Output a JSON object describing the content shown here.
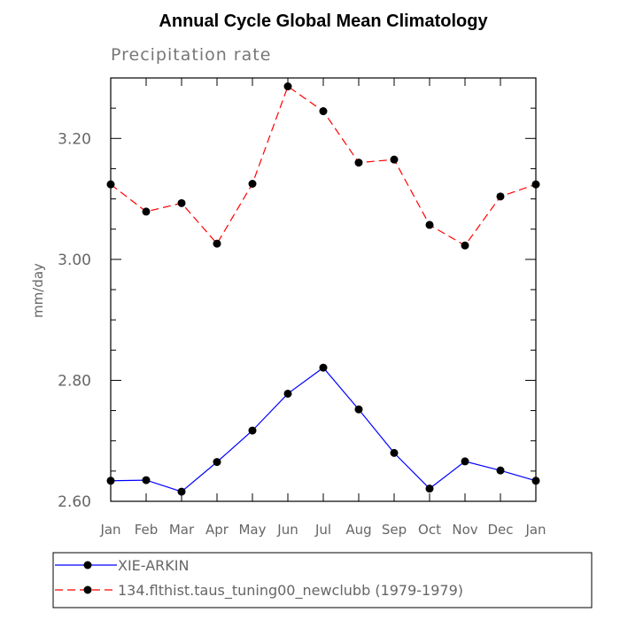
{
  "chart_data": {
    "type": "line",
    "title": "Annual Cycle Global Mean Climatology",
    "subtitle": "Precipitation rate",
    "xlabel": "",
    "ylabel": "mm/day",
    "categories": [
      "Jan",
      "Feb",
      "Mar",
      "Apr",
      "May",
      "Jun",
      "Jul",
      "Aug",
      "Sep",
      "Oct",
      "Nov",
      "Dec",
      "Jan"
    ],
    "ylim": [
      2.6,
      3.3
    ],
    "yticks": [
      2.6,
      2.8,
      3.0,
      3.2
    ],
    "ytick_labels": [
      "2.60",
      "2.80",
      "3.00",
      "3.20"
    ],
    "series": [
      {
        "name": "XIE-ARKIN",
        "color": "#0000ff",
        "dash": "solid",
        "values": [
          2.634,
          2.635,
          2.616,
          2.665,
          2.717,
          2.778,
          2.821,
          2.752,
          2.68,
          2.621,
          2.666,
          2.651,
          2.634
        ]
      },
      {
        "name": "134.flthist.taus_tuning00_newclubb (1979-1979)",
        "color": "#ff0000",
        "dash": "dashed",
        "values": [
          3.124,
          3.079,
          3.093,
          3.026,
          3.125,
          3.286,
          3.245,
          3.16,
          3.165,
          3.057,
          3.023,
          3.104,
          3.124
        ]
      }
    ],
    "legend_position": "bottom",
    "grid": false
  }
}
